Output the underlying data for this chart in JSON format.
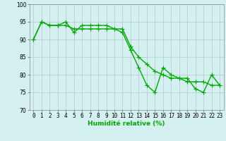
{
  "x": [
    0,
    1,
    2,
    3,
    4,
    5,
    6,
    7,
    8,
    9,
    10,
    11,
    12,
    13,
    14,
    15,
    16,
    17,
    18,
    19,
    20,
    21,
    22,
    23
  ],
  "line1": [
    90,
    95,
    94,
    94,
    95,
    92,
    94,
    94,
    94,
    94,
    93,
    92,
    87,
    82,
    77,
    75,
    82,
    80,
    79,
    79,
    76,
    75,
    80,
    77
  ],
  "line2": [
    90,
    95,
    94,
    94,
    94,
    93,
    93,
    93,
    93,
    93,
    93,
    93,
    88,
    85,
    83,
    81,
    80,
    79,
    79,
    78,
    78,
    78,
    77,
    77
  ],
  "line_color": "#00aa00",
  "bg_color": "#d5f0f0",
  "grid_color": "#b0c8c8",
  "xlabel": "Humidité relative (%)",
  "ylim": [
    70,
    100
  ],
  "xlim_min": -0.5,
  "xlim_max": 23.5,
  "yticks": [
    70,
    75,
    80,
    85,
    90,
    95,
    100
  ],
  "linewidth": 1.0,
  "markersize": 4,
  "tick_fontsize": 5.5,
  "xlabel_fontsize": 6.5
}
